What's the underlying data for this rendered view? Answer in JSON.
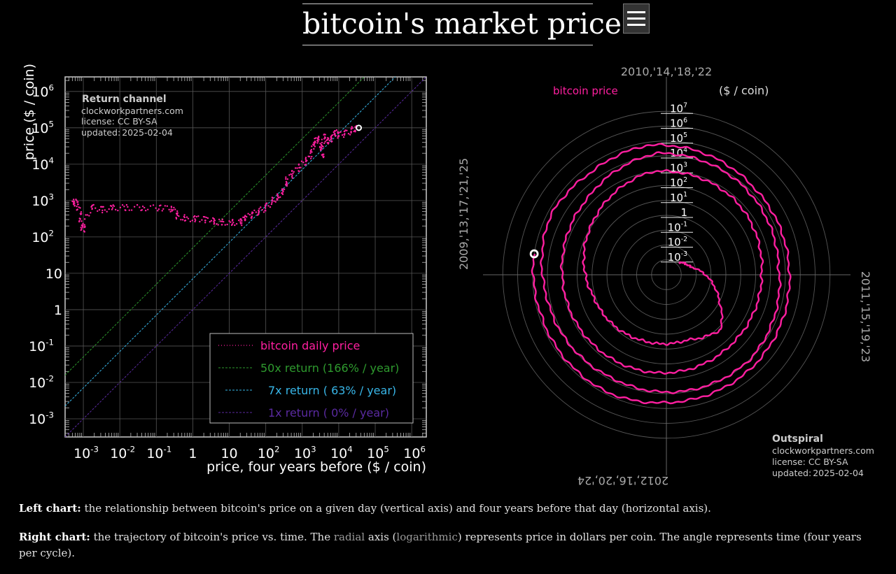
{
  "page": {
    "title": "bitcoin's market price",
    "menu_icon": "hamburger-menu-icon"
  },
  "chart_data": [
    {
      "type": "scatter",
      "title": "Return channel",
      "credit": "clockworkpartners.com",
      "license": "license: CC BY-SA",
      "updated_label": "updated:",
      "updated_date": "2025-02-04",
      "xlabel": "price, four years before ($ / coin)",
      "ylabel": "price ($ / coin)",
      "xscale": "log",
      "yscale": "log",
      "xlim_log10": [
        -3.5,
        6.4
      ],
      "ylim_log10": [
        -3.5,
        6.4
      ],
      "x_ticks": [
        {
          "v": -3,
          "base": "10",
          "exp": "-3"
        },
        {
          "v": -2,
          "base": "10",
          "exp": "-2"
        },
        {
          "v": -1,
          "base": "10",
          "exp": "-1"
        },
        {
          "v": 0,
          "base": "1",
          "exp": ""
        },
        {
          "v": 1,
          "base": "10",
          "exp": ""
        },
        {
          "v": 2,
          "base": "10",
          "exp": "2"
        },
        {
          "v": 3,
          "base": "10",
          "exp": "3"
        },
        {
          "v": 4,
          "base": "10",
          "exp": "4"
        },
        {
          "v": 5,
          "base": "10",
          "exp": "5"
        },
        {
          "v": 6,
          "base": "10",
          "exp": "6"
        }
      ],
      "y_ticks": [
        {
          "v": -3,
          "base": "10",
          "exp": "-3"
        },
        {
          "v": -2,
          "base": "10",
          "exp": "-2"
        },
        {
          "v": -1,
          "base": "10",
          "exp": "-1"
        },
        {
          "v": 0,
          "base": "1",
          "exp": ""
        },
        {
          "v": 1,
          "base": "10",
          "exp": ""
        },
        {
          "v": 2,
          "base": "10",
          "exp": "2"
        },
        {
          "v": 3,
          "base": "10",
          "exp": "3"
        },
        {
          "v": 4,
          "base": "10",
          "exp": "4"
        },
        {
          "v": 5,
          "base": "10",
          "exp": "5"
        },
        {
          "v": 6,
          "base": "10",
          "exp": "6"
        }
      ],
      "legend_position": "bottom-right",
      "series": [
        {
          "name": "bitcoin daily price",
          "color": "#ff1fa0",
          "kind": "points",
          "points_log10": [
            [
              -3.3,
              2.9
            ],
            [
              -3.2,
              3.0
            ],
            [
              -3.1,
              2.7
            ],
            [
              -3.05,
              2.3
            ],
            [
              -3.0,
              2.2
            ],
            [
              -2.8,
              2.85
            ],
            [
              -2.5,
              2.75
            ],
            [
              -2.2,
              2.8
            ],
            [
              -1.8,
              2.8
            ],
            [
              -1.3,
              2.8
            ],
            [
              -0.8,
              2.8
            ],
            [
              -0.5,
              2.75
            ],
            [
              -0.4,
              2.55
            ],
            [
              -0.1,
              2.5
            ],
            [
              0.2,
              2.5
            ],
            [
              0.5,
              2.45
            ],
            [
              0.7,
              2.4
            ],
            [
              1.0,
              2.4
            ],
            [
              1.3,
              2.4
            ],
            [
              1.4,
              2.5
            ],
            [
              1.6,
              2.6
            ],
            [
              1.8,
              2.7
            ],
            [
              2.0,
              2.8
            ],
            [
              2.2,
              3.0
            ],
            [
              2.35,
              3.1
            ],
            [
              2.5,
              3.3
            ],
            [
              2.6,
              3.6
            ],
            [
              2.8,
              3.8
            ],
            [
              3.0,
              4.0
            ],
            [
              3.2,
              4.2
            ],
            [
              3.3,
              4.5
            ],
            [
              3.4,
              4.7
            ],
            [
              3.5,
              4.6
            ],
            [
              3.55,
              4.2
            ],
            [
              3.6,
              4.8
            ],
            [
              3.7,
              4.6
            ],
            [
              3.8,
              4.7
            ],
            [
              3.9,
              4.9
            ],
            [
              4.0,
              4.8
            ],
            [
              4.2,
              4.85
            ],
            [
              4.4,
              4.95
            ],
            [
              4.5,
              5.0
            ]
          ]
        },
        {
          "name": "50x return (166% / year)",
          "color": "#2e9a2e",
          "kind": "line",
          "intercept_log10": 1.7
        },
        {
          "name": "7x return ( 63% / year)",
          "color": "#38b6e8",
          "kind": "line",
          "intercept_log10": 0.85
        },
        {
          "name": "1x return (  0% / year)",
          "color": "#5a2aa0",
          "kind": "line",
          "intercept_log10": 0.0
        }
      ],
      "latest_point_log10": [
        4.55,
        5.0
      ]
    },
    {
      "type": "polar-spiral",
      "title": "Outspiral",
      "credit": "clockworkpartners.com",
      "license": "license: CC BY-SA",
      "updated_label": "updated:",
      "updated_date": "2025-02-04",
      "series_name": "bitcoin price",
      "series_color": "#ff1fa0",
      "radial_unit": "($ / coin)",
      "angle_labels": {
        "top": "2010,'14,'18,'22",
        "right": "2011,'15,'19,'23",
        "bottom": "2012,'16,'20,'24",
        "left": "2009,'13,'17,'21,'25"
      },
      "radial_ticks": [
        {
          "v": -3,
          "base": "10",
          "exp": "-3"
        },
        {
          "v": -2,
          "base": "10",
          "exp": "-2"
        },
        {
          "v": -1,
          "base": "10",
          "exp": "-1"
        },
        {
          "v": 0,
          "base": "1",
          "exp": ""
        },
        {
          "v": 1,
          "base": "10",
          "exp": "1"
        },
        {
          "v": 2,
          "base": "10",
          "exp": "2"
        },
        {
          "v": 3,
          "base": "10",
          "exp": "3"
        },
        {
          "v": 4,
          "base": "10",
          "exp": "4"
        },
        {
          "v": 5,
          "base": "10",
          "exp": "5"
        },
        {
          "v": 6,
          "base": "10",
          "exp": "6"
        },
        {
          "v": 7,
          "base": "10",
          "exp": "7"
        }
      ],
      "radial_range_log10": [
        -4,
        8
      ],
      "cycle_years": 4,
      "start_year": 2010.5,
      "end_year": 2025.1,
      "price_log10_by_year": [
        [
          2010.5,
          -2.8
        ],
        [
          2010.8,
          -2.3
        ],
        [
          2011.3,
          0.0
        ],
        [
          2011.5,
          1.2
        ],
        [
          2011.8,
          0.6
        ],
        [
          2012.2,
          0.7
        ],
        [
          2012.8,
          1.1
        ],
        [
          2013.2,
          1.8
        ],
        [
          2013.4,
          2.1
        ],
        [
          2013.9,
          3.0
        ],
        [
          2014.5,
          2.8
        ],
        [
          2015.0,
          2.4
        ],
        [
          2015.5,
          2.4
        ],
        [
          2016.0,
          2.6
        ],
        [
          2016.5,
          2.8
        ],
        [
          2017.0,
          3.0
        ],
        [
          2017.5,
          3.4
        ],
        [
          2017.95,
          4.2
        ],
        [
          2018.5,
          3.85
        ],
        [
          2018.95,
          3.55
        ],
        [
          2019.5,
          4.0
        ],
        [
          2020.0,
          3.9
        ],
        [
          2020.3,
          3.85
        ],
        [
          2020.9,
          4.2
        ],
        [
          2021.3,
          4.75
        ],
        [
          2021.6,
          4.55
        ],
        [
          2021.9,
          4.8
        ],
        [
          2022.5,
          4.3
        ],
        [
          2022.95,
          4.25
        ],
        [
          2023.5,
          4.48
        ],
        [
          2024.0,
          4.6
        ],
        [
          2024.3,
          4.85
        ],
        [
          2024.8,
          4.85
        ],
        [
          2025.1,
          5.0
        ]
      ],
      "latest_year": 2025.1,
      "latest_price_log10": 5.0
    }
  ],
  "captions": {
    "left_label": "Left chart:",
    "left_text": " the relationship between bitcoin's price on a given day (vertical axis) and four years before that day (horizontal axis).",
    "right_label": "Right chart:",
    "right_text_1": " the trajectory of bitcoin's price vs. time. The ",
    "right_radial": "radial",
    "right_text_2": " axis (",
    "right_log": "logarithmic",
    "right_text_3": ") represents price in dollars per coin. The angle represents time (four years per cycle)."
  }
}
